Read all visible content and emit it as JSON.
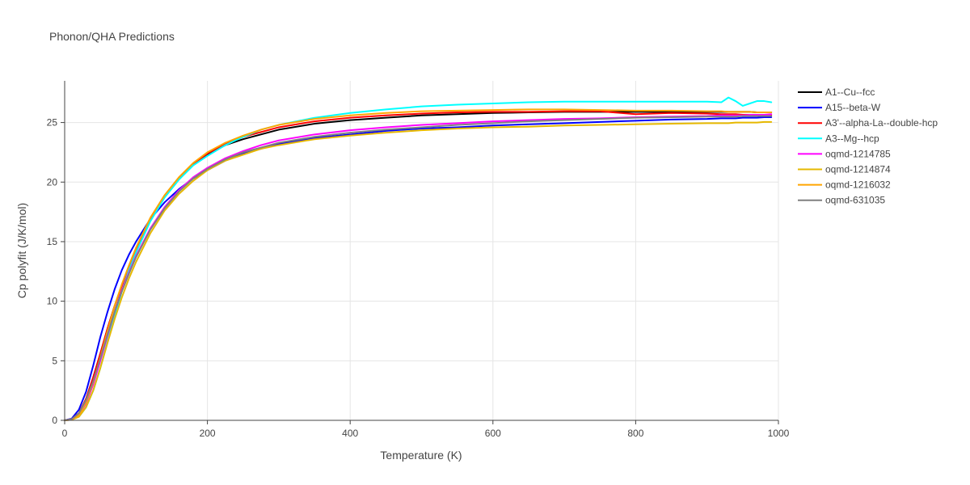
{
  "chart_data": {
    "type": "line",
    "title": "Phonon/QHA Predictions",
    "xlabel": "Temperature (K)",
    "ylabel": "Cp polyfit (J/K/mol)",
    "xlim": [
      0,
      1000
    ],
    "ylim": [
      0,
      28.5
    ],
    "xticks": [
      0,
      200,
      400,
      600,
      800,
      1000
    ],
    "yticks": [
      0,
      5,
      10,
      15,
      20,
      25
    ],
    "xtick_labels": [
      "0",
      "200",
      "400",
      "600",
      "800",
      "1000"
    ],
    "ytick_labels": [
      "0",
      "5",
      "10",
      "15",
      "20",
      "25"
    ],
    "grid": true,
    "legend_position": "right",
    "x": [
      0,
      10,
      20,
      30,
      40,
      50,
      60,
      70,
      80,
      90,
      100,
      120,
      140,
      160,
      180,
      200,
      225,
      250,
      275,
      300,
      350,
      400,
      450,
      500,
      550,
      600,
      650,
      700,
      750,
      800,
      850,
      900,
      920,
      930,
      940,
      950,
      960,
      970,
      980,
      990
    ],
    "series": [
      {
        "name": "A1--Cu--fcc",
        "color": "#000000",
        "values": [
          0,
          0.1,
          0.6,
          1.8,
          3.6,
          5.6,
          7.7,
          9.6,
          11.3,
          12.9,
          14.3,
          16.8,
          18.8,
          20.3,
          21.5,
          22.3,
          23.1,
          23.6,
          24.0,
          24.4,
          24.9,
          25.2,
          25.4,
          25.6,
          25.7,
          25.8,
          25.85,
          25.9,
          25.9,
          25.9,
          25.9,
          25.9,
          25.9,
          25.9,
          25.9,
          25.9,
          25.9,
          25.85,
          25.85,
          25.85
        ]
      },
      {
        "name": "A15--beta-W",
        "color": "#0000ff",
        "values": [
          0,
          0.15,
          0.9,
          2.4,
          4.6,
          7.0,
          9.1,
          11.0,
          12.6,
          13.9,
          15.0,
          16.9,
          18.3,
          19.4,
          20.3,
          21.0,
          21.8,
          22.4,
          22.8,
          23.2,
          23.7,
          24.0,
          24.3,
          24.5,
          24.6,
          24.75,
          24.85,
          24.95,
          25.05,
          25.15,
          25.25,
          25.3,
          25.35,
          25.35,
          25.35,
          25.4,
          25.4,
          25.4,
          25.45,
          25.45
        ]
      },
      {
        "name": "A3'--alpha-La--double-hcp",
        "color": "#ff0000",
        "values": [
          0,
          0.1,
          0.6,
          1.8,
          3.6,
          5.6,
          7.7,
          9.6,
          11.3,
          12.9,
          14.3,
          16.8,
          18.8,
          20.3,
          21.5,
          22.4,
          23.2,
          23.8,
          24.2,
          24.6,
          25.1,
          25.4,
          25.6,
          25.75,
          25.85,
          25.9,
          25.9,
          25.95,
          25.95,
          25.7,
          25.8,
          25.75,
          25.7,
          25.7,
          25.7,
          25.65,
          25.65,
          25.65,
          25.6,
          25.6
        ]
      },
      {
        "name": "A3--Mg--hcp",
        "color": "#00ffff",
        "values": [
          0,
          0.05,
          0.3,
          1.1,
          2.5,
          4.4,
          6.6,
          8.8,
          10.8,
          12.6,
          14.1,
          16.7,
          18.7,
          20.2,
          21.4,
          22.2,
          23.1,
          23.8,
          24.4,
          24.8,
          25.4,
          25.8,
          26.1,
          26.35,
          26.5,
          26.6,
          26.7,
          26.75,
          26.75,
          26.75,
          26.75,
          26.75,
          26.7,
          27.1,
          26.8,
          26.4,
          26.6,
          26.8,
          26.8,
          26.7
        ]
      },
      {
        "name": "oqmd-1214785",
        "color": "#ff00ff",
        "values": [
          0,
          0.05,
          0.4,
          1.4,
          3.0,
          5.0,
          7.1,
          9.1,
          10.9,
          12.4,
          13.8,
          16.1,
          17.9,
          19.3,
          20.4,
          21.2,
          22.0,
          22.6,
          23.1,
          23.5,
          24.0,
          24.35,
          24.6,
          24.8,
          24.95,
          25.1,
          25.2,
          25.3,
          25.35,
          25.45,
          25.5,
          25.55,
          25.6,
          25.6,
          25.6,
          25.6,
          25.65,
          25.65,
          25.65,
          25.7
        ]
      },
      {
        "name": "oqmd-1214874",
        "color": "#e6b800",
        "values": [
          0,
          0.05,
          0.3,
          1.1,
          2.5,
          4.4,
          6.5,
          8.5,
          10.3,
          11.9,
          13.3,
          15.7,
          17.6,
          19.0,
          20.1,
          21.0,
          21.8,
          22.3,
          22.8,
          23.1,
          23.6,
          23.9,
          24.15,
          24.35,
          24.5,
          24.6,
          24.65,
          24.75,
          24.8,
          24.85,
          24.9,
          24.95,
          24.95,
          24.95,
          25.0,
          25.0,
          25.0,
          25.0,
          25.05,
          25.05
        ]
      },
      {
        "name": "oqmd-1216032",
        "color": "#ffa500",
        "values": [
          0,
          0.05,
          0.4,
          1.5,
          3.2,
          5.3,
          7.5,
          9.6,
          11.4,
          13.0,
          14.5,
          17.0,
          18.9,
          20.4,
          21.6,
          22.5,
          23.3,
          23.9,
          24.4,
          24.8,
          25.3,
          25.6,
          25.8,
          25.95,
          26.0,
          26.05,
          26.1,
          26.1,
          26.05,
          26.0,
          26.0,
          25.95,
          25.95,
          25.9,
          25.9,
          25.9,
          25.9,
          25.85,
          25.85,
          25.85
        ]
      },
      {
        "name": "oqmd-631035",
        "color": "#808080",
        "values": [
          0,
          0.1,
          0.6,
          1.7,
          3.3,
          5.2,
          7.2,
          9.1,
          10.8,
          12.3,
          13.7,
          16.0,
          17.8,
          19.2,
          20.3,
          21.1,
          21.9,
          22.5,
          22.9,
          23.3,
          23.8,
          24.15,
          24.4,
          24.6,
          24.8,
          24.95,
          25.1,
          25.2,
          25.3,
          25.4,
          25.45,
          25.5,
          25.5,
          25.5,
          25.5,
          25.55,
          25.55,
          25.55,
          25.55,
          25.55
        ]
      }
    ]
  }
}
